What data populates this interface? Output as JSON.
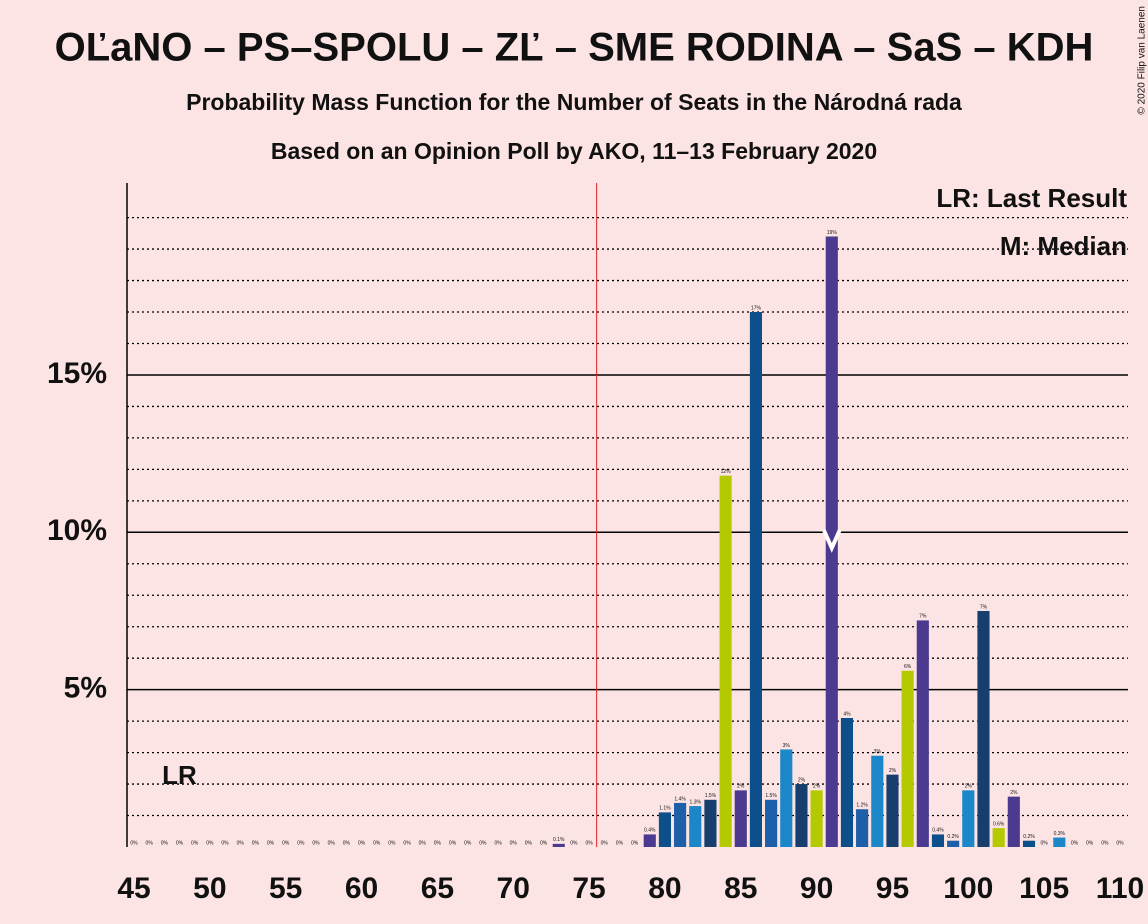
{
  "chart_data": {
    "type": "bar",
    "title": "OĽaNO – PS–SPOLU – ZĽ – SME RODINA – SaS – KDH",
    "subtitle": "Probability Mass Function for the Number of Seats in the Národná rada",
    "subtitle2": "Based on an Opinion Poll by AKO, 11–13 February 2020",
    "copyright": "© 2020 Filip van Laenen",
    "legend_lr": "LR: Last Result",
    "legend_median": "M: Median",
    "lr_label": "LR",
    "last_result": 48,
    "median": 91,
    "majority_line": 75.5,
    "categories": [
      45,
      46,
      47,
      48,
      49,
      50,
      51,
      52,
      53,
      54,
      55,
      56,
      57,
      58,
      59,
      60,
      61,
      62,
      63,
      64,
      65,
      66,
      67,
      68,
      69,
      70,
      71,
      72,
      73,
      74,
      75,
      76,
      77,
      78,
      79,
      80,
      81,
      82,
      83,
      84,
      85,
      86,
      87,
      88,
      89,
      90,
      91,
      92,
      93,
      94,
      95,
      96,
      97,
      98,
      99,
      100,
      101,
      102,
      103,
      104,
      105,
      106,
      107,
      108,
      109,
      110
    ],
    "values": [
      0,
      0,
      0,
      0,
      0,
      0,
      0,
      0,
      0,
      0,
      0,
      0,
      0,
      0,
      0,
      0,
      0,
      0,
      0,
      0,
      0,
      0,
      0,
      0,
      0,
      0,
      0,
      0,
      0.1,
      0,
      0,
      0,
      0,
      0,
      0.4,
      1.1,
      1.4,
      1.3,
      1.5,
      11.8,
      1.8,
      17,
      1.5,
      3.1,
      2,
      1.8,
      19.4,
      4.1,
      1.2,
      2.9,
      2.3,
      5.6,
      7.2,
      0.4,
      0.2,
      1.8,
      7.5,
      0.6,
      1.6,
      0.2,
      0,
      0.3,
      0,
      0,
      0,
      0
    ],
    "value_labels": [
      "0%",
      "0%",
      "0%",
      "0%",
      "0%",
      "0%",
      "0%",
      "0%",
      "0%",
      "0%",
      "0%",
      "0%",
      "0%",
      "0%",
      "0%",
      "0%",
      "0%",
      "0%",
      "0%",
      "0%",
      "0%",
      "0%",
      "0%",
      "0%",
      "0%",
      "0%",
      "0%",
      "0%",
      "0.1%",
      "0%",
      "0%",
      "0%",
      "0%",
      "0%",
      "0.4%",
      "1.1%",
      "1.4%",
      "1.3%",
      "1.5%",
      "12%",
      "2%",
      "17%",
      "1.5%",
      "3%",
      "2%",
      "2%",
      "19%",
      "4%",
      "1.2%",
      "3%",
      "2%",
      "6%",
      "7%",
      "0.4%",
      "0.2%",
      "2%",
      "7%",
      "0.6%",
      "2%",
      "0.2%",
      "0%",
      "0.3%",
      "0%",
      "0%",
      "0%",
      "0%"
    ],
    "colors": [
      "#1d5fa8",
      "#1b87c9",
      "#173f6e",
      "#b5c900",
      "#4b3a8f",
      "#0d4f8b",
      "#1d5fa8",
      "#1b87c9",
      "#173f6e",
      "#b5c900",
      "#4b3a8f",
      "#0d4f8b",
      "#1d5fa8",
      "#1b87c9",
      "#173f6e",
      "#b5c900",
      "#4b3a8f",
      "#0d4f8b",
      "#1d5fa8",
      "#1b87c9",
      "#173f6e",
      "#b5c900",
      "#4b3a8f",
      "#0d4f8b",
      "#1d5fa8",
      "#1b87c9",
      "#173f6e",
      "#b5c900",
      "#4b3a8f",
      "#0d4f8b",
      "#1d5fa8",
      "#1b87c9",
      "#173f6e",
      "#b5c900",
      "#4b3a8f",
      "#0d4f8b",
      "#1d5fa8",
      "#1b87c9",
      "#173f6e",
      "#b5c900",
      "#4b3a8f",
      "#0d4f8b",
      "#1d5fa8",
      "#1b87c9",
      "#173f6e",
      "#b5c900",
      "#4b3a8f",
      "#0d4f8b",
      "#1d5fa8",
      "#1b87c9",
      "#173f6e",
      "#b5c900",
      "#4b3a8f",
      "#0d4f8b",
      "#1d5fa8",
      "#1b87c9",
      "#173f6e",
      "#b5c900",
      "#4b3a8f",
      "#0d4f8b",
      "#1d5fa8",
      "#1b87c9",
      "#173f6e",
      "#b5c900",
      "#4b3a8f",
      "#0d4f8b"
    ],
    "xlim": [
      45,
      110
    ],
    "xticks": [
      45,
      50,
      55,
      60,
      65,
      70,
      75,
      80,
      85,
      90,
      95,
      100,
      105,
      110
    ],
    "ylim": [
      0,
      21.1
    ],
    "yticks": [
      {
        "value": 5,
        "label": "5%"
      },
      {
        "value": 10,
        "label": "10%"
      },
      {
        "value": 15,
        "label": "15%"
      }
    ],
    "minor_grid": [
      1,
      2,
      3,
      4,
      6,
      7,
      8,
      9,
      11,
      12,
      13,
      14,
      16,
      17,
      18,
      19,
      20
    ]
  }
}
